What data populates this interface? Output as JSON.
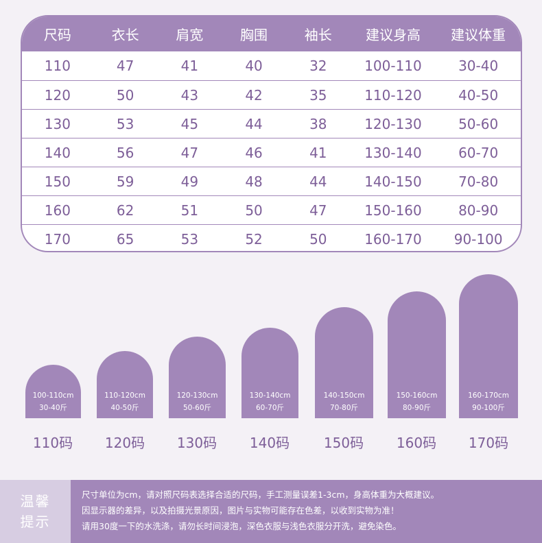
{
  "table": {
    "headers": [
      "尺码",
      "衣长",
      "肩宽",
      "胸围",
      "袖长",
      "建议身高",
      "建议体重"
    ],
    "rows": [
      [
        "110",
        "47",
        "41",
        "40",
        "32",
        "100-110",
        "30-40"
      ],
      [
        "120",
        "50",
        "43",
        "42",
        "35",
        "110-120",
        "40-50"
      ],
      [
        "130",
        "53",
        "45",
        "44",
        "38",
        "120-130",
        "50-60"
      ],
      [
        "140",
        "56",
        "47",
        "46",
        "41",
        "130-140",
        "60-70"
      ],
      [
        "150",
        "59",
        "49",
        "48",
        "44",
        "140-150",
        "70-80"
      ],
      [
        "160",
        "62",
        "51",
        "50",
        "47",
        "150-160",
        "80-90"
      ],
      [
        "170",
        "65",
        "53",
        "52",
        "50",
        "160-170",
        "90-100"
      ]
    ]
  },
  "bars": [
    {
      "height_text": "100-110cm",
      "weight_text": "30-40斤",
      "label": "110码"
    },
    {
      "height_text": "110-120cm",
      "weight_text": "40-50斤",
      "label": "120码"
    },
    {
      "height_text": "120-130cm",
      "weight_text": "50-60斤",
      "label": "130码"
    },
    {
      "height_text": "130-140cm",
      "weight_text": "60-70斤",
      "label": "140码"
    },
    {
      "height_text": "140-150cm",
      "weight_text": "70-80斤",
      "label": "150码"
    },
    {
      "height_text": "150-160cm",
      "weight_text": "80-90斤",
      "label": "160码"
    },
    {
      "height_text": "160-170cm",
      "weight_text": "90-100斤",
      "label": "170码"
    }
  ],
  "footer": {
    "tag_line1": "温馨",
    "tag_line2": "提示",
    "notes": [
      "尺寸单位为cm，请对照尺码表选择合适的尺码，手工测量误差1-3cm，身高体重为大概建议。",
      "因显示器的差异，以及拍摄光景原因，图片与实物可能存在色差，以收到实物为准！",
      "请用30度一下的水洗涤，请勿长时间浸泡，深色衣服与浅色衣服分开洗，避免染色。"
    ]
  },
  "colors": {
    "accent": "#a287b9",
    "text": "#7d5e98",
    "footer_tag": "#d7cde2",
    "background": "#f4f1f6"
  }
}
